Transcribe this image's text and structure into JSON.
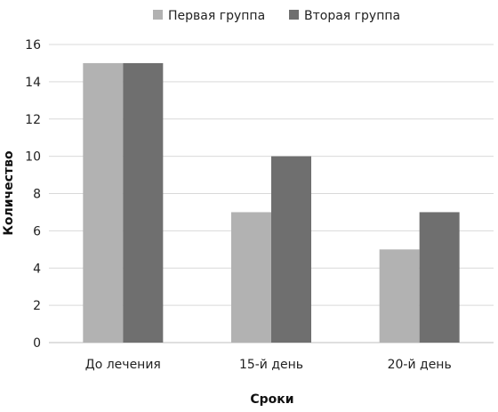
{
  "chart_data": {
    "type": "bar",
    "categories": [
      "До лечения",
      "15-й день",
      "20-й день"
    ],
    "series": [
      {
        "name": "Первая группа",
        "color": "#b2b2b2",
        "values": [
          15,
          7,
          5
        ]
      },
      {
        "name": "Вторая группа",
        "color": "#6f6f6f",
        "values": [
          15,
          10,
          7
        ]
      }
    ],
    "xlabel": "Сроки",
    "ylabel": "Количество",
    "ylim": [
      0,
      16
    ],
    "yticks": [
      0,
      2,
      4,
      6,
      8,
      10,
      12,
      14,
      16
    ],
    "grid": true,
    "legend_position": "top"
  }
}
